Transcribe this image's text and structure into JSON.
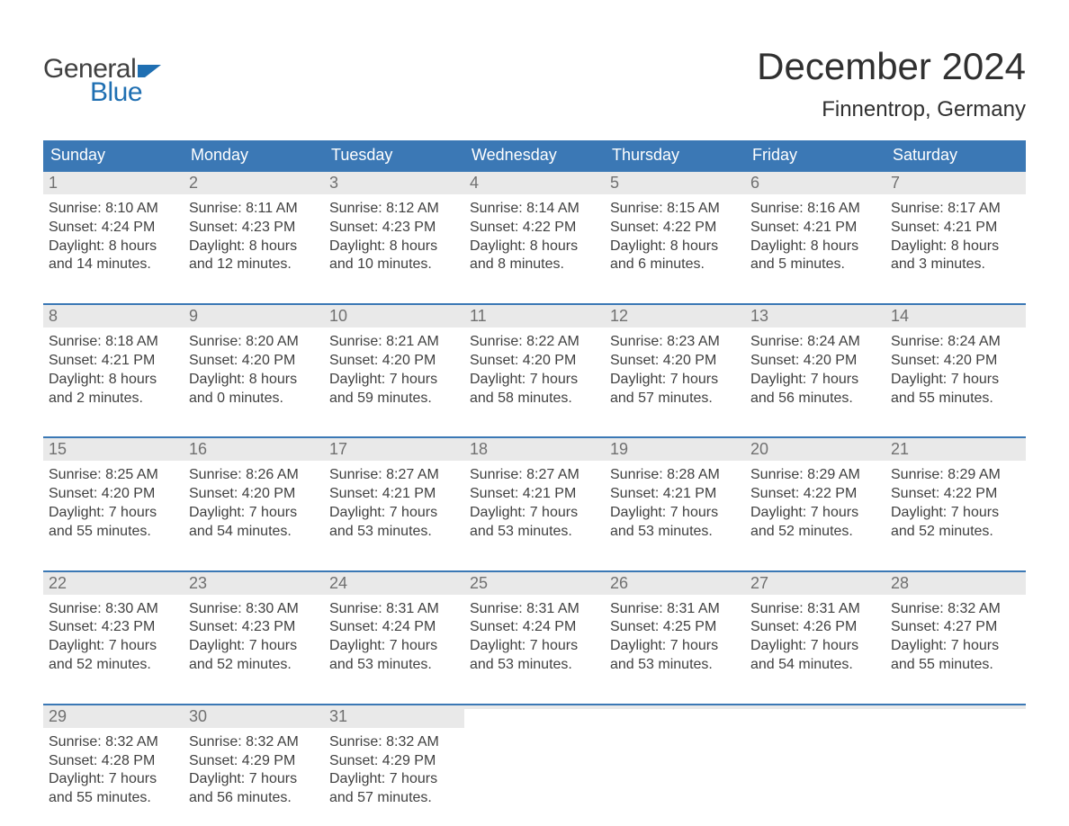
{
  "logo": {
    "word1": "General",
    "word2": "Blue",
    "text_color": "#404040",
    "accent_color": "#1f6fb2"
  },
  "title": "December 2024",
  "subtitle": "Finnentrop, Germany",
  "colors": {
    "header_bg": "#3b78b5",
    "header_text": "#ffffff",
    "daynum_bg": "#e9e9e9",
    "daynum_text": "#707070",
    "body_text": "#404040",
    "week_border": "#3b78b5",
    "page_bg": "#ffffff"
  },
  "typography": {
    "title_fontsize": 42,
    "subtitle_fontsize": 24,
    "header_fontsize": 18,
    "daynum_fontsize": 18,
    "body_fontsize": 16
  },
  "day_names": [
    "Sunday",
    "Monday",
    "Tuesday",
    "Wednesday",
    "Thursday",
    "Friday",
    "Saturday"
  ],
  "weeks": [
    [
      {
        "n": "1",
        "sunrise": "Sunrise: 8:10 AM",
        "sunset": "Sunset: 4:24 PM",
        "d1": "Daylight: 8 hours",
        "d2": "and 14 minutes."
      },
      {
        "n": "2",
        "sunrise": "Sunrise: 8:11 AM",
        "sunset": "Sunset: 4:23 PM",
        "d1": "Daylight: 8 hours",
        "d2": "and 12 minutes."
      },
      {
        "n": "3",
        "sunrise": "Sunrise: 8:12 AM",
        "sunset": "Sunset: 4:23 PM",
        "d1": "Daylight: 8 hours",
        "d2": "and 10 minutes."
      },
      {
        "n": "4",
        "sunrise": "Sunrise: 8:14 AM",
        "sunset": "Sunset: 4:22 PM",
        "d1": "Daylight: 8 hours",
        "d2": "and 8 minutes."
      },
      {
        "n": "5",
        "sunrise": "Sunrise: 8:15 AM",
        "sunset": "Sunset: 4:22 PM",
        "d1": "Daylight: 8 hours",
        "d2": "and 6 minutes."
      },
      {
        "n": "6",
        "sunrise": "Sunrise: 8:16 AM",
        "sunset": "Sunset: 4:21 PM",
        "d1": "Daylight: 8 hours",
        "d2": "and 5 minutes."
      },
      {
        "n": "7",
        "sunrise": "Sunrise: 8:17 AM",
        "sunset": "Sunset: 4:21 PM",
        "d1": "Daylight: 8 hours",
        "d2": "and 3 minutes."
      }
    ],
    [
      {
        "n": "8",
        "sunrise": "Sunrise: 8:18 AM",
        "sunset": "Sunset: 4:21 PM",
        "d1": "Daylight: 8 hours",
        "d2": "and 2 minutes."
      },
      {
        "n": "9",
        "sunrise": "Sunrise: 8:20 AM",
        "sunset": "Sunset: 4:20 PM",
        "d1": "Daylight: 8 hours",
        "d2": "and 0 minutes."
      },
      {
        "n": "10",
        "sunrise": "Sunrise: 8:21 AM",
        "sunset": "Sunset: 4:20 PM",
        "d1": "Daylight: 7 hours",
        "d2": "and 59 minutes."
      },
      {
        "n": "11",
        "sunrise": "Sunrise: 8:22 AM",
        "sunset": "Sunset: 4:20 PM",
        "d1": "Daylight: 7 hours",
        "d2": "and 58 minutes."
      },
      {
        "n": "12",
        "sunrise": "Sunrise: 8:23 AM",
        "sunset": "Sunset: 4:20 PM",
        "d1": "Daylight: 7 hours",
        "d2": "and 57 minutes."
      },
      {
        "n": "13",
        "sunrise": "Sunrise: 8:24 AM",
        "sunset": "Sunset: 4:20 PM",
        "d1": "Daylight: 7 hours",
        "d2": "and 56 minutes."
      },
      {
        "n": "14",
        "sunrise": "Sunrise: 8:24 AM",
        "sunset": "Sunset: 4:20 PM",
        "d1": "Daylight: 7 hours",
        "d2": "and 55 minutes."
      }
    ],
    [
      {
        "n": "15",
        "sunrise": "Sunrise: 8:25 AM",
        "sunset": "Sunset: 4:20 PM",
        "d1": "Daylight: 7 hours",
        "d2": "and 55 minutes."
      },
      {
        "n": "16",
        "sunrise": "Sunrise: 8:26 AM",
        "sunset": "Sunset: 4:20 PM",
        "d1": "Daylight: 7 hours",
        "d2": "and 54 minutes."
      },
      {
        "n": "17",
        "sunrise": "Sunrise: 8:27 AM",
        "sunset": "Sunset: 4:21 PM",
        "d1": "Daylight: 7 hours",
        "d2": "and 53 minutes."
      },
      {
        "n": "18",
        "sunrise": "Sunrise: 8:27 AM",
        "sunset": "Sunset: 4:21 PM",
        "d1": "Daylight: 7 hours",
        "d2": "and 53 minutes."
      },
      {
        "n": "19",
        "sunrise": "Sunrise: 8:28 AM",
        "sunset": "Sunset: 4:21 PM",
        "d1": "Daylight: 7 hours",
        "d2": "and 53 minutes."
      },
      {
        "n": "20",
        "sunrise": "Sunrise: 8:29 AM",
        "sunset": "Sunset: 4:22 PM",
        "d1": "Daylight: 7 hours",
        "d2": "and 52 minutes."
      },
      {
        "n": "21",
        "sunrise": "Sunrise: 8:29 AM",
        "sunset": "Sunset: 4:22 PM",
        "d1": "Daylight: 7 hours",
        "d2": "and 52 minutes."
      }
    ],
    [
      {
        "n": "22",
        "sunrise": "Sunrise: 8:30 AM",
        "sunset": "Sunset: 4:23 PM",
        "d1": "Daylight: 7 hours",
        "d2": "and 52 minutes."
      },
      {
        "n": "23",
        "sunrise": "Sunrise: 8:30 AM",
        "sunset": "Sunset: 4:23 PM",
        "d1": "Daylight: 7 hours",
        "d2": "and 52 minutes."
      },
      {
        "n": "24",
        "sunrise": "Sunrise: 8:31 AM",
        "sunset": "Sunset: 4:24 PM",
        "d1": "Daylight: 7 hours",
        "d2": "and 53 minutes."
      },
      {
        "n": "25",
        "sunrise": "Sunrise: 8:31 AM",
        "sunset": "Sunset: 4:24 PM",
        "d1": "Daylight: 7 hours",
        "d2": "and 53 minutes."
      },
      {
        "n": "26",
        "sunrise": "Sunrise: 8:31 AM",
        "sunset": "Sunset: 4:25 PM",
        "d1": "Daylight: 7 hours",
        "d2": "and 53 minutes."
      },
      {
        "n": "27",
        "sunrise": "Sunrise: 8:31 AM",
        "sunset": "Sunset: 4:26 PM",
        "d1": "Daylight: 7 hours",
        "d2": "and 54 minutes."
      },
      {
        "n": "28",
        "sunrise": "Sunrise: 8:32 AM",
        "sunset": "Sunset: 4:27 PM",
        "d1": "Daylight: 7 hours",
        "d2": "and 55 minutes."
      }
    ],
    [
      {
        "n": "29",
        "sunrise": "Sunrise: 8:32 AM",
        "sunset": "Sunset: 4:28 PM",
        "d1": "Daylight: 7 hours",
        "d2": "and 55 minutes."
      },
      {
        "n": "30",
        "sunrise": "Sunrise: 8:32 AM",
        "sunset": "Sunset: 4:29 PM",
        "d1": "Daylight: 7 hours",
        "d2": "and 56 minutes."
      },
      {
        "n": "31",
        "sunrise": "Sunrise: 8:32 AM",
        "sunset": "Sunset: 4:29 PM",
        "d1": "Daylight: 7 hours",
        "d2": "and 57 minutes."
      },
      {
        "n": "",
        "sunrise": "",
        "sunset": "",
        "d1": "",
        "d2": ""
      },
      {
        "n": "",
        "sunrise": "",
        "sunset": "",
        "d1": "",
        "d2": ""
      },
      {
        "n": "",
        "sunrise": "",
        "sunset": "",
        "d1": "",
        "d2": ""
      },
      {
        "n": "",
        "sunrise": "",
        "sunset": "",
        "d1": "",
        "d2": ""
      }
    ]
  ]
}
